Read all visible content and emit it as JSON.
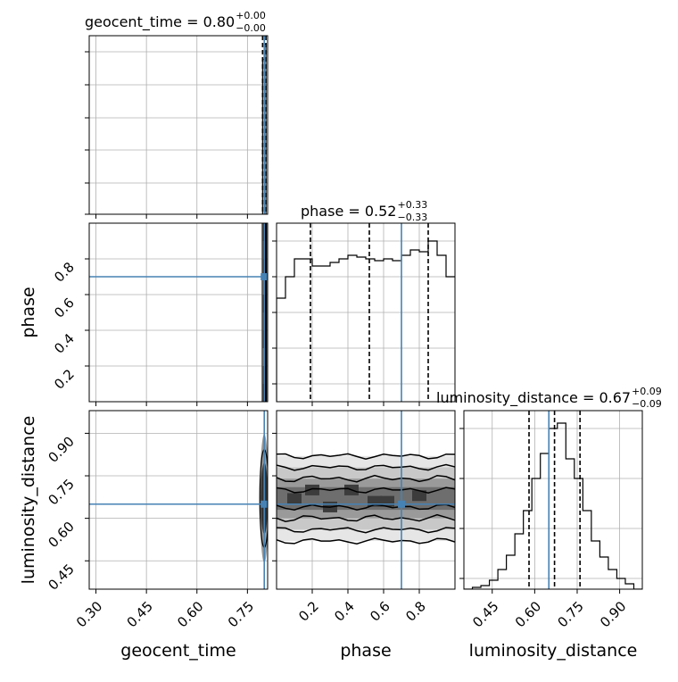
{
  "chart_data": {
    "type": "corner",
    "parameters": [
      "geocent_time",
      "phase",
      "luminosity_distance"
    ],
    "truth": {
      "geocent_time": 0.8,
      "phase": 0.7,
      "luminosity_distance": 0.65
    },
    "titles": [
      {
        "param": "geocent_time",
        "prefix": "geocent_time = ",
        "median": "0.80",
        "plus": "+0.00",
        "minus": "−0.00"
      },
      {
        "param": "phase",
        "prefix": "phase = ",
        "median": "0.52",
        "plus": "+0.33",
        "minus": "−0.33"
      },
      {
        "param": "luminosity_distance",
        "prefix": "luminosity_distance = ",
        "median": "0.67",
        "plus": "+0.09",
        "minus": "−0.09"
      }
    ],
    "axes": {
      "geocent_time": {
        "range": [
          0.28,
          0.81
        ],
        "ticks": [
          "0.30",
          "0.45",
          "0.60",
          "0.75"
        ],
        "tick_values": [
          0.3,
          0.45,
          0.6,
          0.75
        ]
      },
      "phase": {
        "range": [
          0.0,
          1.0
        ],
        "ticks": [
          "0.2",
          "0.4",
          "0.6",
          "0.8"
        ],
        "tick_values": [
          0.2,
          0.4,
          0.6,
          0.8
        ]
      },
      "luminosity_distance": {
        "range": [
          0.35,
          0.98
        ],
        "ticks": [
          "0.45",
          "0.60",
          "0.75",
          "0.90"
        ],
        "tick_values": [
          0.45,
          0.6,
          0.75,
          0.9
        ]
      }
    },
    "quantiles": {
      "geocent_time": [
        0.795,
        0.8,
        0.805
      ],
      "phase": [
        0.19,
        0.52,
        0.85
      ],
      "luminosity_distance": [
        0.58,
        0.67,
        0.76
      ]
    },
    "hist_phase": {
      "bin_edges": [
        0.0,
        0.05,
        0.1,
        0.15,
        0.2,
        0.25,
        0.3,
        0.35,
        0.4,
        0.45,
        0.5,
        0.55,
        0.6,
        0.65,
        0.7,
        0.75,
        0.8,
        0.85,
        0.9,
        0.95,
        1.0
      ],
      "heights": [
        0.58,
        0.7,
        0.8,
        0.8,
        0.76,
        0.76,
        0.78,
        0.8,
        0.82,
        0.81,
        0.8,
        0.79,
        0.8,
        0.79,
        0.82,
        0.85,
        0.84,
        0.9,
        0.82,
        0.7
      ]
    },
    "hist_luminosity_distance": {
      "bin_edges": [
        0.35,
        0.38,
        0.41,
        0.44,
        0.47,
        0.5,
        0.53,
        0.56,
        0.59,
        0.62,
        0.65,
        0.68,
        0.71,
        0.74,
        0.77,
        0.8,
        0.83,
        0.86,
        0.89,
        0.92,
        0.95,
        0.98
      ],
      "heights": [
        0.0,
        0.01,
        0.02,
        0.05,
        0.11,
        0.19,
        0.31,
        0.44,
        0.62,
        0.76,
        0.9,
        0.93,
        0.73,
        0.62,
        0.44,
        0.27,
        0.18,
        0.11,
        0.06,
        0.03,
        0.0
      ]
    },
    "hist_geocent_time_ylim": [
      0,
      1.05
    ],
    "grid": true,
    "colors": {
      "truth": "#4682b4",
      "hist": "#000000",
      "grid": "#b0b0b0"
    }
  }
}
